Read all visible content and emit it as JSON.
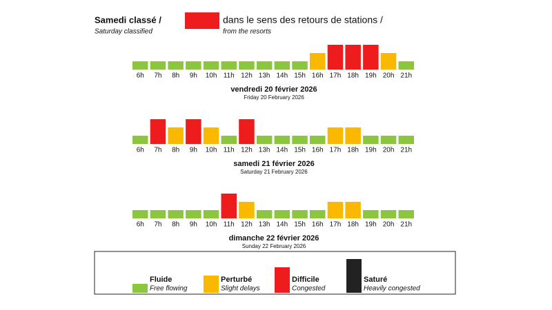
{
  "header": {
    "title": "Samedi classé /",
    "subtitle": "Saturday classified",
    "direction": "dans le sens des retours de stations /",
    "direction_en": "from the resorts"
  },
  "hours": [
    "6h",
    "7h",
    "8h",
    "9h",
    "10h",
    "11h",
    "12h",
    "13h",
    "14h",
    "15h",
    "16h",
    "17h",
    "18h",
    "19h",
    "20h",
    "21h"
  ],
  "days": [
    {
      "title": "vendredi 20 février 2026",
      "subtitle": "Friday 20 February 2026",
      "levels": [
        0,
        0,
        0,
        0,
        0,
        0,
        0,
        0,
        0,
        0,
        1,
        2,
        2,
        2,
        1,
        0
      ]
    },
    {
      "title": "samedi 21 février 2026",
      "subtitle": "Saturday 21 February 2026",
      "levels": [
        0,
        2,
        1,
        2,
        1,
        0,
        2,
        0,
        0,
        0,
        0,
        1,
        1,
        0,
        0,
        0
      ]
    },
    {
      "title": "dimanche 22 février 2026",
      "subtitle": "Sunday 22 February 2026",
      "levels": [
        0,
        0,
        0,
        0,
        0,
        2,
        1,
        0,
        0,
        0,
        0,
        1,
        1,
        0,
        0,
        0
      ]
    }
  ],
  "legend": [
    {
      "label": "Fluide",
      "sublabel": "Free flowing",
      "color": "#8cc63f"
    },
    {
      "label": "Perturbé",
      "sublabel": "Slight delays",
      "color": "#fbb800"
    },
    {
      "label": "Difficile",
      "sublabel": "Congested",
      "color": "#ee1c1c"
    },
    {
      "label": "Saturé",
      "sublabel": "Heavily congested",
      "color": "#222222"
    }
  ]
}
